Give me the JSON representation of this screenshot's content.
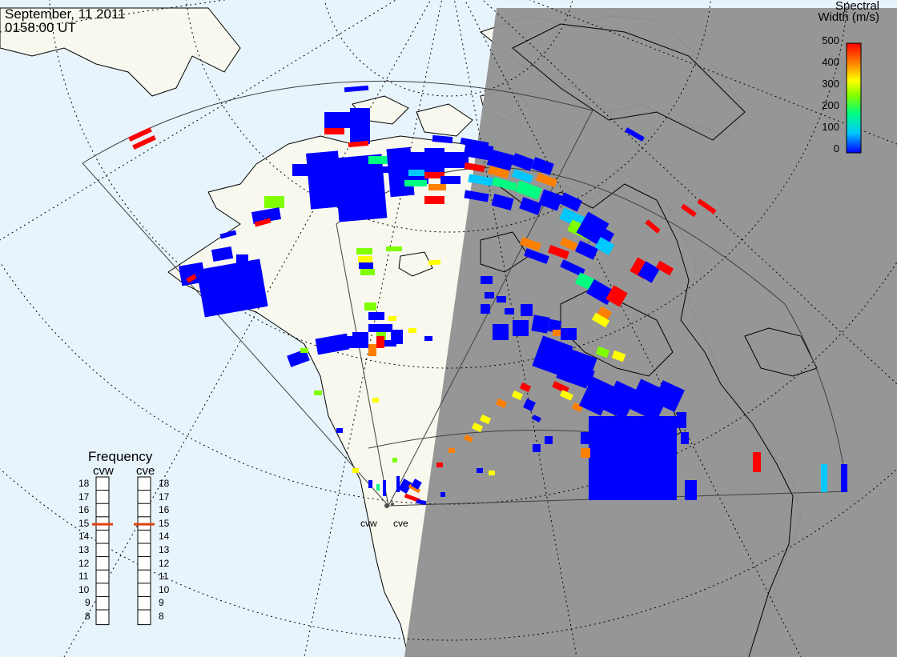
{
  "header": {
    "date": "September, 11 2011",
    "time": "0158:00 UT"
  },
  "colorbar": {
    "title_line1": "Spectral",
    "title_line2": "Width (m/s)",
    "ticks": [
      "500",
      "400",
      "300",
      "200",
      "100",
      "0"
    ],
    "range": [
      0,
      500
    ],
    "colors": [
      "#0000ff",
      "#00c8ff",
      "#00ff80",
      "#80ff00",
      "#ffff00",
      "#ff8000",
      "#ff0000"
    ]
  },
  "frequency_panel": {
    "title": "Frequency",
    "radars": [
      {
        "name": "cvw",
        "selected_mhz": 15
      },
      {
        "name": "cve",
        "selected_mhz": 15
      }
    ],
    "labels": [
      "18",
      "17",
      "16",
      "15",
      "14",
      "13",
      "12",
      "11",
      "10",
      "9",
      "8"
    ]
  },
  "sites": {
    "west_label": "cvw",
    "east_label": "cve"
  },
  "map_colors": {
    "ocean": "#e8f4fc",
    "land": "#f8f8ee",
    "night": "#929292",
    "coast": "#000000",
    "fov": "#404040"
  }
}
